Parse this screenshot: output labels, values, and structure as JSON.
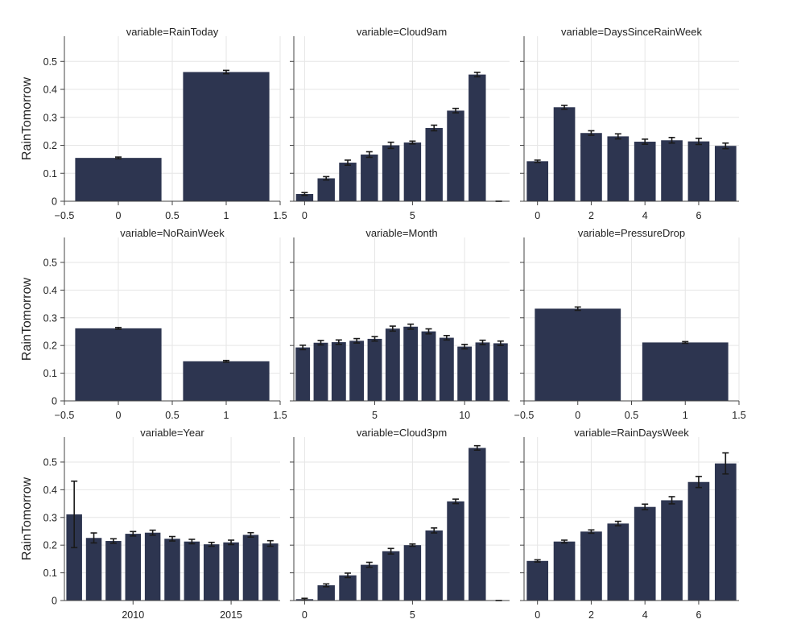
{
  "figure": {
    "y_axis_title": "RainTomorrow",
    "bar_color": "#2d3550",
    "grid_color": "#e6e6e6",
    "axis_color": "#444444"
  },
  "chart_data": [
    {
      "type": "bar",
      "title": "variable=RainToday",
      "xlim": [
        -0.5,
        1.5
      ],
      "xticks": [
        -0.5,
        0,
        0.5,
        1,
        1.5
      ],
      "xtick_labels": [
        "−0.5",
        "0",
        "0.5",
        "1",
        "1.5"
      ],
      "ylim": [
        0,
        0.59
      ],
      "yticks": [
        0,
        0.1,
        0.2,
        0.3,
        0.4,
        0.5
      ],
      "ytick_labels": [
        "0",
        "0.1",
        "0.2",
        "0.3",
        "0.4",
        "0.5"
      ],
      "bar_width": 0.8,
      "x": [
        0,
        1
      ],
      "values": [
        0.155,
        0.462
      ],
      "errors": [
        0.003,
        0.006
      ]
    },
    {
      "type": "bar",
      "title": "variable=Cloud9am",
      "xlim": [
        -0.5,
        9.5
      ],
      "xticks": [
        0,
        5
      ],
      "xtick_labels": [
        "0",
        "5"
      ],
      "ylim": [
        0,
        0.59
      ],
      "bar_width": 0.8,
      "x": [
        0,
        1,
        2,
        3,
        4,
        5,
        6,
        7,
        8,
        9
      ],
      "values": [
        0.026,
        0.082,
        0.138,
        0.167,
        0.2,
        0.21,
        0.262,
        0.324,
        0.453,
        0.0
      ],
      "errors": [
        0.005,
        0.006,
        0.009,
        0.01,
        0.011,
        0.005,
        0.01,
        0.008,
        0.008,
        0.0
      ]
    },
    {
      "type": "bar",
      "title": "variable=DaysSinceRainWeek",
      "xlim": [
        -0.5,
        7.5
      ],
      "xticks": [
        0,
        2,
        4,
        6
      ],
      "xtick_labels": [
        "0",
        "2",
        "4",
        "6"
      ],
      "ylim": [
        0,
        0.59
      ],
      "bar_width": 0.8,
      "x": [
        0,
        1,
        2,
        3,
        4,
        5,
        6,
        7
      ],
      "values": [
        0.143,
        0.336,
        0.244,
        0.232,
        0.213,
        0.218,
        0.214,
        0.198
      ],
      "errors": [
        0.004,
        0.007,
        0.008,
        0.009,
        0.009,
        0.01,
        0.011,
        0.01
      ]
    },
    {
      "type": "bar",
      "title": "variable=NoRainWeek",
      "xlim": [
        -0.5,
        1.5
      ],
      "xticks": [
        -0.5,
        0,
        0.5,
        1,
        1.5
      ],
      "xtick_labels": [
        "−0.5",
        "0",
        "0.5",
        "1",
        "1.5"
      ],
      "ylim": [
        0,
        0.59
      ],
      "yticks": [
        0,
        0.1,
        0.2,
        0.3,
        0.4,
        0.5
      ],
      "ytick_labels": [
        "0",
        "0.1",
        "0.2",
        "0.3",
        "0.4",
        "0.5"
      ],
      "bar_width": 0.8,
      "x": [
        0,
        1
      ],
      "values": [
        0.262,
        0.143
      ],
      "errors": [
        0.003,
        0.003
      ]
    },
    {
      "type": "bar",
      "title": "variable=Month",
      "xlim": [
        0.5,
        12.5
      ],
      "xticks": [
        5,
        10
      ],
      "xtick_labels": [
        "5",
        "10"
      ],
      "ylim": [
        0,
        0.59
      ],
      "bar_width": 0.8,
      "x": [
        1,
        2,
        3,
        4,
        5,
        6,
        7,
        8,
        9,
        10,
        11,
        12
      ],
      "values": [
        0.193,
        0.21,
        0.212,
        0.217,
        0.224,
        0.261,
        0.268,
        0.251,
        0.228,
        0.196,
        0.211,
        0.208
      ],
      "errors": [
        0.008,
        0.008,
        0.008,
        0.008,
        0.008,
        0.009,
        0.009,
        0.009,
        0.008,
        0.008,
        0.008,
        0.008
      ]
    },
    {
      "type": "bar",
      "title": "variable=PressureDrop",
      "xlim": [
        -0.5,
        1.5
      ],
      "xticks": [
        -0.5,
        0,
        0.5,
        1,
        1.5
      ],
      "xtick_labels": [
        "−0.5",
        "0",
        "0.5",
        "1",
        "1.5"
      ],
      "ylim": [
        0,
        0.59
      ],
      "bar_width": 0.8,
      "x": [
        0,
        1
      ],
      "values": [
        0.333,
        0.211
      ],
      "errors": [
        0.006,
        0.003
      ]
    },
    {
      "type": "bar",
      "title": "variable=Year",
      "xlim": [
        2006.5,
        2017.5
      ],
      "xticks": [
        2010,
        2015
      ],
      "xtick_labels": [
        "2010",
        "2015"
      ],
      "ylim": [
        0,
        0.59
      ],
      "yticks": [
        0,
        0.1,
        0.2,
        0.3,
        0.4,
        0.5
      ],
      "ytick_labels": [
        "0",
        "0.1",
        "0.2",
        "0.3",
        "0.4",
        "0.5"
      ],
      "bar_width": 0.8,
      "x": [
        2007,
        2008,
        2009,
        2010,
        2011,
        2012,
        2013,
        2014,
        2015,
        2016,
        2017
      ],
      "values": [
        0.311,
        0.226,
        0.215,
        0.241,
        0.245,
        0.223,
        0.213,
        0.203,
        0.21,
        0.237,
        0.206
      ],
      "errors": [
        0.12,
        0.018,
        0.008,
        0.008,
        0.009,
        0.008,
        0.008,
        0.007,
        0.008,
        0.008,
        0.01
      ]
    },
    {
      "type": "bar",
      "title": "variable=Cloud3pm",
      "xlim": [
        -0.5,
        9.5
      ],
      "xticks": [
        0,
        5
      ],
      "xtick_labels": [
        "0",
        "5"
      ],
      "ylim": [
        0,
        0.59
      ],
      "bar_width": 0.8,
      "x": [
        0,
        1,
        2,
        3,
        4,
        5,
        6,
        7,
        8,
        9
      ],
      "values": [
        0.005,
        0.055,
        0.091,
        0.129,
        0.178,
        0.2,
        0.253,
        0.358,
        0.551,
        0.0
      ],
      "errors": [
        0.003,
        0.005,
        0.008,
        0.009,
        0.01,
        0.004,
        0.009,
        0.008,
        0.008,
        0.0
      ]
    },
    {
      "type": "bar",
      "title": "variable=RainDaysWeek",
      "xlim": [
        -0.5,
        7.5
      ],
      "xticks": [
        0,
        2,
        4,
        6
      ],
      "xtick_labels": [
        "0",
        "2",
        "4",
        "6"
      ],
      "ylim": [
        0,
        0.59
      ],
      "bar_width": 0.8,
      "x": [
        0,
        1,
        2,
        3,
        4,
        5,
        6,
        7
      ],
      "values": [
        0.143,
        0.213,
        0.249,
        0.278,
        0.338,
        0.362,
        0.428,
        0.495
      ],
      "errors": [
        0.004,
        0.005,
        0.006,
        0.008,
        0.01,
        0.013,
        0.02,
        0.038
      ]
    }
  ]
}
